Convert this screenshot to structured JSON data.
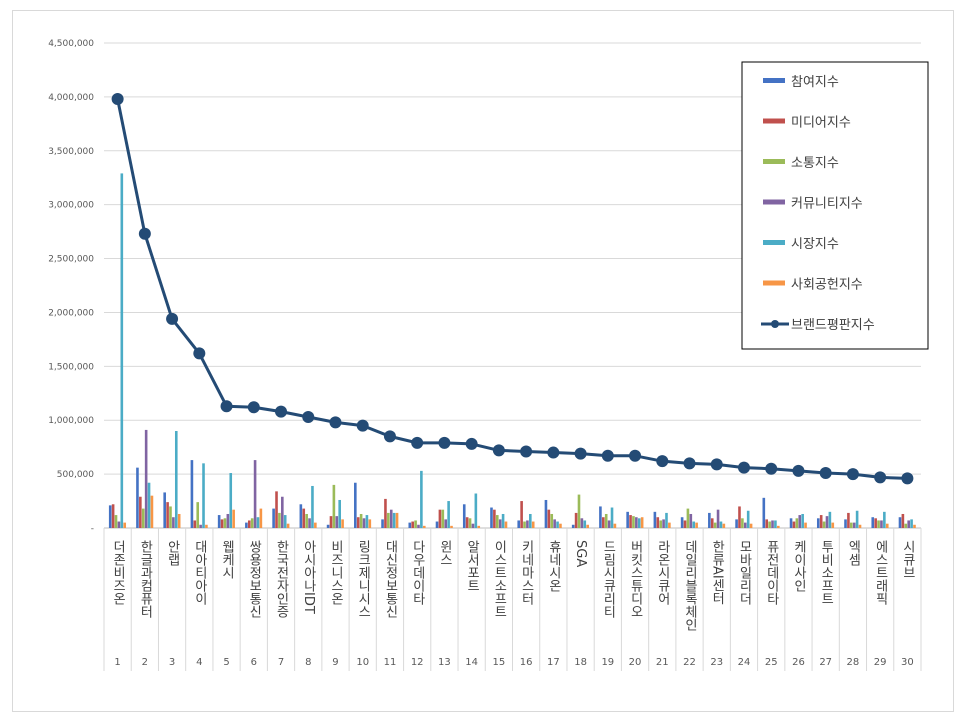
{
  "chart_data": {
    "type": "bar",
    "title": "",
    "xlabel": "",
    "ylabel": "",
    "ylim": [
      0,
      4500000
    ],
    "y_ticks": [
      "-",
      "500,000",
      "1,000,000",
      "1,500,000",
      "2,000,000",
      "2,500,000",
      "3,000,000",
      "3,500,000",
      "4,000,000",
      "4,500,000"
    ],
    "grid": true,
    "legend_position": "top-right",
    "categories": [
      "더존비즈온",
      "한글과컴퓨터",
      "안랩",
      "대아티아이",
      "웹케시",
      "쌍용정보통신",
      "한국전자인증",
      "아시아나IDT",
      "비즈니스온",
      "링크제니시스",
      "대신정보통신",
      "다우데이타",
      "윈스",
      "알서포트",
      "이스트소프트",
      "키네마스터",
      "휴네시온",
      "SGA",
      "드림시큐리티",
      "버킷스튜디오",
      "라온시큐어",
      "데일리블록체인",
      "한류AI센터",
      "모바일리더",
      "퓨전데이타",
      "케이사인",
      "투비소프트",
      "엑셈",
      "에스트래픽",
      "시큐브"
    ],
    "ranks": [
      "1",
      "2",
      "3",
      "4",
      "5",
      "6",
      "7",
      "8",
      "9",
      "10",
      "11",
      "12",
      "13",
      "14",
      "15",
      "16",
      "17",
      "18",
      "19",
      "20",
      "21",
      "22",
      "23",
      "24",
      "25",
      "26",
      "27",
      "28",
      "29",
      "30"
    ],
    "series": [
      {
        "name": "참여지수",
        "color": "#4472c4",
        "kind": "bar",
        "values": [
          210000,
          560000,
          330000,
          630000,
          120000,
          50000,
          180000,
          220000,
          30000,
          420000,
          80000,
          50000,
          60000,
          220000,
          190000,
          70000,
          260000,
          30000,
          200000,
          150000,
          150000,
          100000,
          140000,
          80000,
          280000,
          90000,
          90000,
          80000,
          100000,
          100000
        ]
      },
      {
        "name": "미디어지수",
        "color": "#c0504d",
        "kind": "bar",
        "values": [
          220000,
          290000,
          240000,
          70000,
          80000,
          70000,
          340000,
          180000,
          110000,
          100000,
          270000,
          60000,
          170000,
          100000,
          170000,
          250000,
          170000,
          140000,
          100000,
          120000,
          100000,
          70000,
          90000,
          200000,
          80000,
          60000,
          120000,
          140000,
          90000,
          130000
        ]
      },
      {
        "name": "소통지수",
        "color": "#9bbb59",
        "kind": "bar",
        "values": [
          120000,
          180000,
          200000,
          240000,
          90000,
          90000,
          140000,
          130000,
          400000,
          130000,
          140000,
          70000,
          170000,
          90000,
          120000,
          60000,
          130000,
          310000,
          130000,
          110000,
          70000,
          180000,
          50000,
          90000,
          60000,
          90000,
          60000,
          50000,
          70000,
          40000
        ]
      },
      {
        "name": "커뮤니티지수",
        "color": "#8064a2",
        "kind": "bar",
        "values": [
          60000,
          910000,
          100000,
          30000,
          130000,
          630000,
          290000,
          90000,
          110000,
          90000,
          170000,
          30000,
          80000,
          40000,
          80000,
          70000,
          80000,
          90000,
          70000,
          100000,
          80000,
          130000,
          170000,
          50000,
          70000,
          120000,
          110000,
          50000,
          70000,
          70000
        ]
      },
      {
        "name": "시장지수",
        "color": "#4bacc6",
        "kind": "bar",
        "values": [
          3290000,
          420000,
          900000,
          600000,
          510000,
          100000,
          120000,
          390000,
          260000,
          120000,
          140000,
          530000,
          250000,
          320000,
          130000,
          130000,
          60000,
          70000,
          190000,
          90000,
          140000,
          60000,
          60000,
          160000,
          70000,
          130000,
          150000,
          160000,
          150000,
          80000
        ]
      },
      {
        "name": "사회공헌지수",
        "color": "#f79646",
        "kind": "bar",
        "values": [
          50000,
          300000,
          130000,
          30000,
          170000,
          180000,
          40000,
          50000,
          80000,
          80000,
          140000,
          20000,
          20000,
          20000,
          60000,
          60000,
          40000,
          30000,
          40000,
          100000,
          50000,
          50000,
          40000,
          40000,
          20000,
          50000,
          50000,
          30000,
          40000,
          30000
        ]
      },
      {
        "name": "브랜드평판지수",
        "color": "#244b75",
        "kind": "line",
        "values": [
          3980000,
          2730000,
          1940000,
          1620000,
          1130000,
          1120000,
          1080000,
          1030000,
          980000,
          950000,
          850000,
          790000,
          790000,
          780000,
          720000,
          710000,
          700000,
          690000,
          670000,
          670000,
          620000,
          600000,
          590000,
          560000,
          550000,
          530000,
          510000,
          500000,
          470000,
          460000
        ]
      }
    ]
  }
}
